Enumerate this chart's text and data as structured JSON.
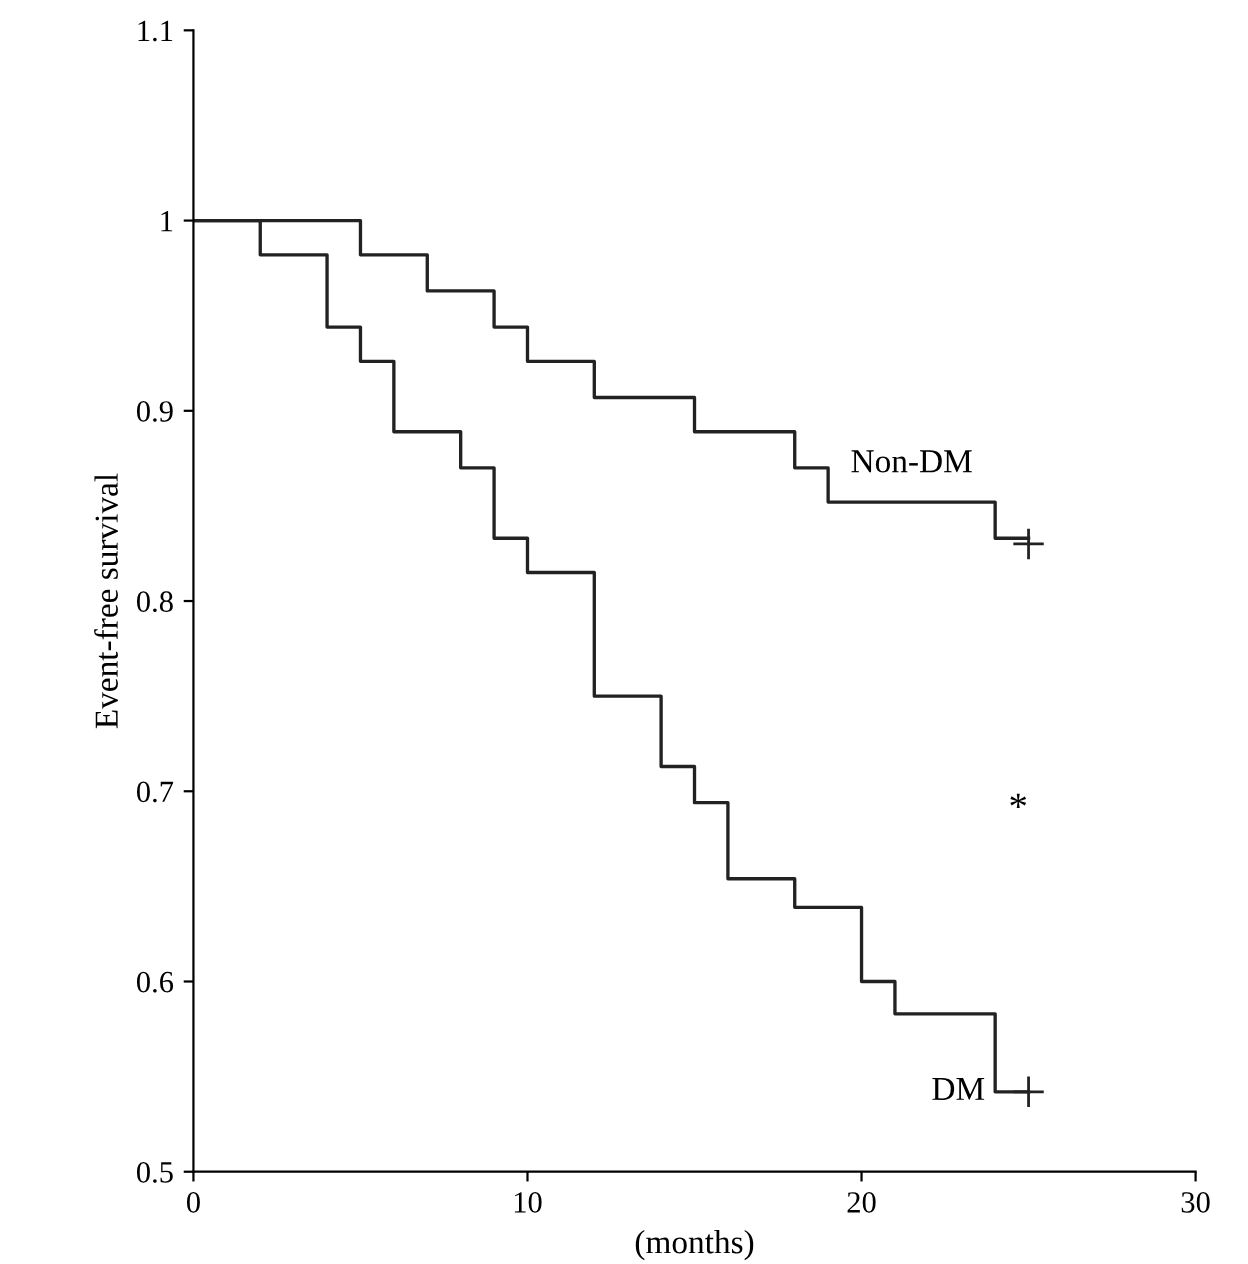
{
  "chart_data": {
    "type": "step",
    "xlabel": "(months)",
    "ylabel": "Event-free survival",
    "xlim": [
      0,
      30
    ],
    "xticks": [
      0,
      10,
      20,
      30
    ],
    "ylim": [
      0.5,
      1.1
    ],
    "yticks": [
      0.5,
      0.6,
      0.7,
      0.8,
      0.9,
      1,
      1.1
    ],
    "grid": false,
    "legend": false,
    "series": [
      {
        "name": "Non-DM",
        "color": "#222222",
        "x": [
          0,
          5,
          7,
          9,
          10,
          12,
          15,
          18,
          19,
          24,
          25
        ],
        "values": [
          1,
          0.982,
          0.963,
          0.944,
          0.926,
          0.907,
          0.889,
          0.87,
          0.852,
          0.833,
          0.833
        ]
      },
      {
        "name": "DM",
        "color": "#222222",
        "x": [
          0,
          2,
          4,
          5,
          6,
          8,
          9,
          10,
          12,
          14,
          15,
          16,
          18,
          20,
          21,
          24,
          25
        ],
        "values": [
          1,
          0.982,
          0.944,
          0.926,
          0.889,
          0.87,
          0.833,
          0.815,
          0.75,
          0.713,
          0.694,
          0.654,
          0.639,
          0.6,
          0.583,
          0.542,
          0.542
        ]
      },
      {
        "type": "scatter",
        "marker": "cross",
        "color": "#222222",
        "x": [
          25,
          25
        ],
        "values": [
          0.83,
          0.542
        ]
      }
    ],
    "annotations": [
      "*"
    ]
  }
}
